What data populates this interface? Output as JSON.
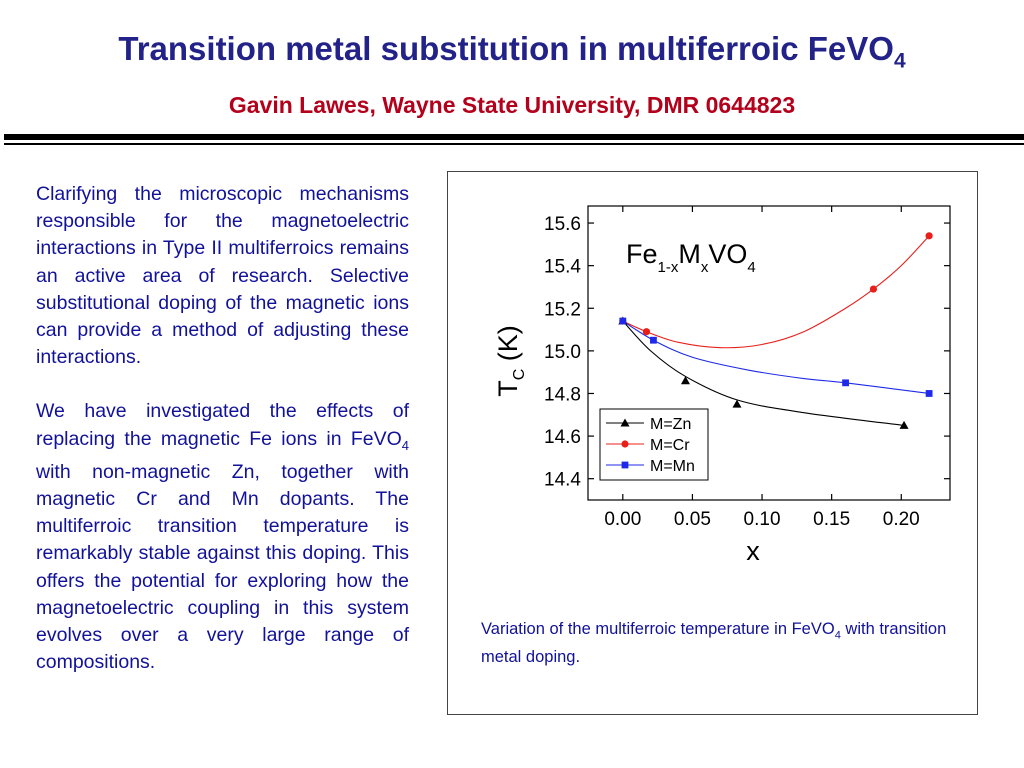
{
  "header": {
    "title_main": "Transition metal substitution in multiferroic FeVO",
    "title_sub": "4",
    "subtitle": "Gavin Lawes, Wayne State University, DMR 0644823"
  },
  "body": {
    "p1": "Clarifying the microscopic mechanisms responsible for the magnetoelectric interactions in Type II multiferroics remains an active area of research.  Selective substitutional doping of the magnetic ions can provide a method of adjusting these interactions.",
    "p2_a": "We have investigated the effects of replacing the magnetic Fe ions in FeVO",
    "p2_sub": "4",
    "p2_b": " with non-magnetic Zn, together with magnetic Cr and Mn dopants.  The multiferroic transition temperature is remarkably stable against this doping.  This offers the potential for exploring how the magnetoelectric coupling in this system evolves over a very large range of compositions."
  },
  "caption": {
    "a": "Variation of the multiferroic temperature in FeVO",
    "sub": "4",
    "b": " with transition metal doping."
  },
  "chart_data": {
    "type": "scatter",
    "formula_label": {
      "fe": "Fe",
      "s1": "1-x",
      "m": "M",
      "s2": "x",
      "vo": "VO",
      "s3": "4"
    },
    "xlabel": "x",
    "ylabel": {
      "t": "T",
      "sub": "C",
      "unit": " (K)"
    },
    "xlim": [
      -0.025,
      0.235
    ],
    "ylim": [
      14.3,
      15.68
    ],
    "xticks": [
      0.0,
      0.05,
      0.1,
      0.15,
      0.2
    ],
    "xtick_labels": [
      "0.00",
      "0.05",
      "0.10",
      "0.15",
      "0.20"
    ],
    "yticks": [
      14.4,
      14.6,
      14.8,
      15.0,
      15.2,
      15.4,
      15.6
    ],
    "ytick_labels": [
      "14.4",
      "14.6",
      "14.8",
      "15.0",
      "15.2",
      "15.4",
      "15.6"
    ],
    "legend_position": "bottom-left",
    "grid": false,
    "series": [
      {
        "name": "M=Zn",
        "color": "#000000",
        "marker": "triangle",
        "x": [
          0.0,
          0.045,
          0.082,
          0.202
        ],
        "y": [
          15.14,
          14.86,
          14.75,
          14.65
        ],
        "fit": [
          [
            0.0,
            15.14
          ],
          [
            0.02,
            15.0
          ],
          [
            0.045,
            14.88
          ],
          [
            0.082,
            14.77
          ],
          [
            0.13,
            14.71
          ],
          [
            0.202,
            14.65
          ]
        ]
      },
      {
        "name": "M=Cr",
        "color": "#e8201c",
        "marker": "circle",
        "x": [
          0.0,
          0.017,
          0.18,
          0.22
        ],
        "y": [
          15.14,
          15.09,
          15.29,
          15.54
        ],
        "fit": [
          [
            0.0,
            15.14
          ],
          [
            0.017,
            15.09
          ],
          [
            0.04,
            15.04
          ],
          [
            0.07,
            15.015
          ],
          [
            0.1,
            15.03
          ],
          [
            0.13,
            15.09
          ],
          [
            0.16,
            15.2
          ],
          [
            0.18,
            15.29
          ],
          [
            0.2,
            15.4
          ],
          [
            0.22,
            15.54
          ]
        ]
      },
      {
        "name": "M=Mn",
        "color": "#1f2ae8",
        "marker": "square",
        "x": [
          0.0,
          0.022,
          0.16,
          0.22
        ],
        "y": [
          15.14,
          15.05,
          14.85,
          14.8
        ],
        "fit": [
          [
            0.0,
            15.14
          ],
          [
            0.022,
            15.05
          ],
          [
            0.05,
            14.97
          ],
          [
            0.09,
            14.91
          ],
          [
            0.13,
            14.87
          ],
          [
            0.16,
            14.85
          ],
          [
            0.22,
            14.8
          ]
        ]
      }
    ]
  }
}
